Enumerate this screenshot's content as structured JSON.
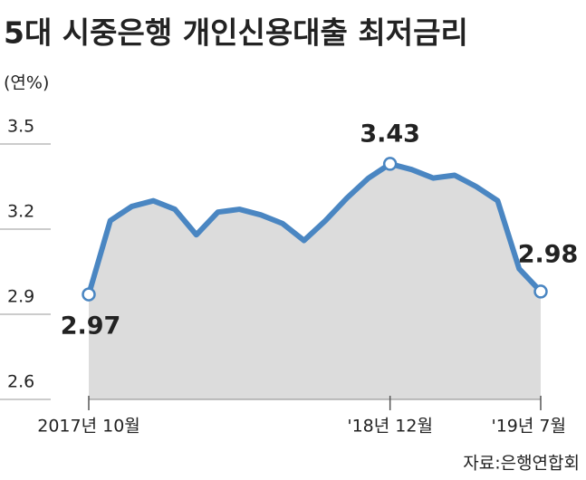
{
  "chart_data": {
    "type": "area",
    "title": "5대 시중은행 개인신용대출 최저금리",
    "y_label": "(연%)",
    "source": "자료:은행연합회",
    "categories": [
      "2017년 10월",
      null,
      null,
      null,
      null,
      null,
      null,
      null,
      null,
      null,
      null,
      null,
      null,
      null,
      "'18년 12월",
      null,
      null,
      null,
      null,
      null,
      null,
      "'19년 7월"
    ],
    "values": [
      2.97,
      3.23,
      3.28,
      3.3,
      3.27,
      3.18,
      3.26,
      3.27,
      3.25,
      3.22,
      3.16,
      3.23,
      3.31,
      3.38,
      3.43,
      3.41,
      3.38,
      3.39,
      3.35,
      3.3,
      3.06,
      2.98
    ],
    "labeled_points": [
      0,
      14,
      21
    ],
    "color": "#4a86c2",
    "fill": "#dcdcdc",
    "ylim": [
      2.6,
      3.5
    ],
    "yticks": [
      2.6,
      2.9,
      3.2,
      3.5
    ]
  }
}
